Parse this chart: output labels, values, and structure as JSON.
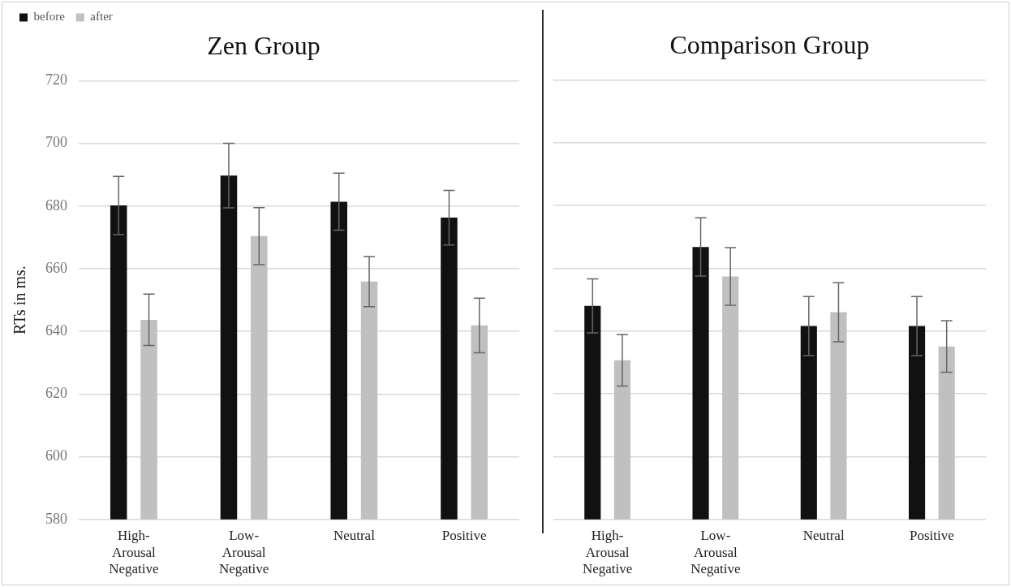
{
  "chart_data": [
    {
      "type": "bar",
      "title": "Zen Group",
      "ylabel": "RTs in ms.",
      "categories": [
        "High-Arousal Negative",
        "Low-Arousal Negative",
        "Neutral",
        "Positive"
      ],
      "series": [
        {
          "name": "before",
          "color": "#111111",
          "values": [
            680.2,
            689.7,
            681.4,
            676.3
          ],
          "errors": [
            9.3,
            10.3,
            9.1,
            8.7
          ]
        },
        {
          "name": "after",
          "color": "#c0c0c0",
          "values": [
            643.7,
            670.4,
            655.9,
            641.9
          ],
          "errors": [
            8.2,
            9.1,
            8.0,
            8.7
          ]
        }
      ],
      "ylim": [
        580,
        720
      ],
      "yticks": [
        580,
        600,
        620,
        640,
        660,
        680,
        700,
        720
      ],
      "grid": "y",
      "legend": "top left"
    },
    {
      "type": "bar",
      "title": "Comparison Group",
      "categories": [
        "High-Arousal Negative",
        "Low-Arousal Negative",
        "Neutral",
        "Positive"
      ],
      "series": [
        {
          "color": "#111111",
          "values": [
            648.0,
            666.8,
            641.6,
            641.6
          ],
          "errors": [
            8.6,
            9.3,
            9.4,
            9.4
          ]
        },
        {
          "color": "#c0c0c0",
          "values": [
            630.7,
            657.4,
            646.0,
            635.1
          ],
          "errors": [
            8.2,
            9.2,
            9.4,
            8.2
          ]
        }
      ],
      "ylim": [
        580,
        720
      ],
      "yticks": [
        580,
        600,
        620,
        640,
        660,
        680,
        700,
        720
      ],
      "grid": "y",
      "tick_labels": "x"
    }
  ]
}
